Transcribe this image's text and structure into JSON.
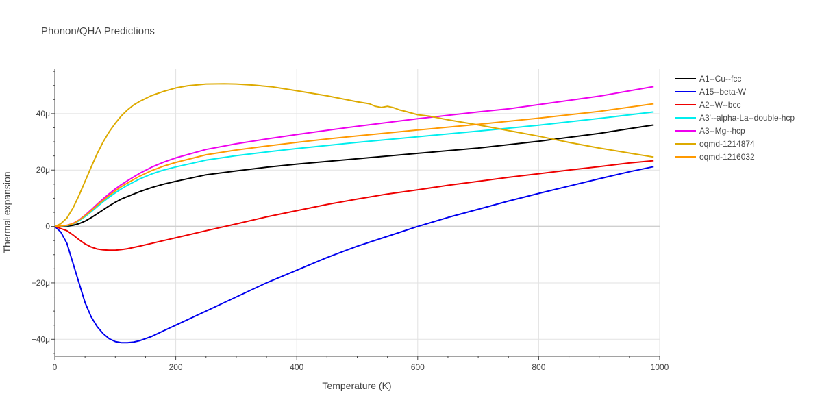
{
  "chart_data": {
    "type": "line",
    "title": "Phonon/QHA Predictions",
    "xlabel": "Temperature (K)",
    "ylabel": "Thermal expansion",
    "xlim": [
      0,
      1000
    ],
    "ylim": [
      -4.6e-05,
      5.6e-05
    ],
    "x_ticks": [
      0,
      200,
      400,
      600,
      800,
      1000
    ],
    "x_tick_labels": [
      "0",
      "200",
      "400",
      "600",
      "800",
      "1000"
    ],
    "y_ticks": [
      -4e-05,
      -2e-05,
      0,
      2e-05,
      4e-05
    ],
    "y_tick_labels": [
      "−40μ",
      "−20μ",
      "0",
      "20μ",
      "40μ"
    ],
    "grid": true,
    "legend_position": "right",
    "series": [
      {
        "name": "A1--Cu--fcc",
        "color": "#000000",
        "x": [
          0,
          20,
          30,
          40,
          50,
          60,
          70,
          80,
          90,
          100,
          110,
          120,
          140,
          160,
          180,
          200,
          250,
          300,
          350,
          400,
          500,
          600,
          700,
          800,
          900,
          990
        ],
        "y": [
          0,
          1e-07,
          4e-07,
          1e-06,
          1.9e-06,
          3.1e-06,
          4.5e-06,
          5.9e-06,
          7.3e-06,
          8.6e-06,
          9.7e-06,
          1.06e-05,
          1.23e-05,
          1.38e-05,
          1.5e-05,
          1.6e-05,
          1.83e-05,
          1.97e-05,
          2.1e-05,
          2.21e-05,
          2.4e-05,
          2.59e-05,
          2.78e-05,
          3.02e-05,
          3.3e-05,
          3.6e-05
        ]
      },
      {
        "name": "A15--beta-W",
        "color": "#0000ee",
        "x": [
          0,
          10,
          20,
          30,
          40,
          50,
          60,
          70,
          80,
          90,
          100,
          110,
          120,
          130,
          140,
          160,
          180,
          200,
          250,
          300,
          350,
          400,
          450,
          500,
          550,
          600,
          650,
          700,
          750,
          800,
          850,
          900,
          950,
          990
        ],
        "y": [
          0,
          -2e-06,
          -6e-06,
          -1.3e-05,
          -2e-05,
          -2.7e-05,
          -3.2e-05,
          -3.55e-05,
          -3.8e-05,
          -3.98e-05,
          -4.08e-05,
          -4.12e-05,
          -4.12e-05,
          -4.1e-05,
          -4.05e-05,
          -3.9e-05,
          -3.7e-05,
          -3.5e-05,
          -3e-05,
          -2.5e-05,
          -2e-05,
          -1.55e-05,
          -1.1e-05,
          -7e-06,
          -3.5e-06,
          0,
          3.2e-06,
          6.1e-06,
          9e-06,
          1.17e-05,
          1.43e-05,
          1.69e-05,
          1.94e-05,
          2.12e-05
        ]
      },
      {
        "name": "A2--W--bcc",
        "color": "#ee0000",
        "x": [
          0,
          20,
          30,
          40,
          50,
          60,
          70,
          80,
          90,
          100,
          110,
          120,
          140,
          160,
          180,
          200,
          250,
          300,
          350,
          400,
          450,
          500,
          550,
          600,
          650,
          700,
          750,
          800,
          850,
          900,
          950,
          990
        ],
        "y": [
          0,
          -1.5e-06,
          -3e-06,
          -4.7e-06,
          -6.2e-06,
          -7.3e-06,
          -8e-06,
          -8.3e-06,
          -8.4e-06,
          -8.4e-06,
          -8.2e-06,
          -7.9e-06,
          -7e-06,
          -6e-06,
          -5e-06,
          -4e-06,
          -1.5e-06,
          9e-07,
          3.4e-06,
          5.6e-06,
          7.8e-06,
          9.7e-06,
          1.15e-05,
          1.3e-05,
          1.46e-05,
          1.6e-05,
          1.74e-05,
          1.87e-05,
          2e-05,
          2.12e-05,
          2.25e-05,
          2.33e-05
        ]
      },
      {
        "name": "A3'--alpha-La--double-hcp",
        "color": "#00eeee",
        "x": [
          0,
          20,
          30,
          40,
          50,
          60,
          70,
          80,
          90,
          100,
          110,
          120,
          140,
          160,
          180,
          200,
          250,
          300,
          350,
          400,
          450,
          500,
          600,
          700,
          800,
          900,
          990
        ],
        "y": [
          0,
          3e-07,
          9e-07,
          2e-06,
          3.5e-06,
          5.2e-06,
          7e-06,
          8.8e-06,
          1.04e-05,
          1.19e-05,
          1.33e-05,
          1.46e-05,
          1.68e-05,
          1.86e-05,
          2e-05,
          2.11e-05,
          2.35e-05,
          2.51e-05,
          2.64e-05,
          2.76e-05,
          2.87e-05,
          2.98e-05,
          3.18e-05,
          3.38e-05,
          3.59e-05,
          3.83e-05,
          4.06e-05
        ]
      },
      {
        "name": "A3--Mg--hcp",
        "color": "#ee00ee",
        "x": [
          0,
          20,
          30,
          40,
          50,
          60,
          70,
          80,
          90,
          100,
          110,
          120,
          140,
          160,
          180,
          200,
          250,
          300,
          350,
          400,
          450,
          500,
          600,
          700,
          750,
          800,
          900,
          990
        ],
        "y": [
          0,
          4e-07,
          1.1e-06,
          2.3e-06,
          4e-06,
          5.9e-06,
          7.9e-06,
          9.8e-06,
          1.16e-05,
          1.33e-05,
          1.48e-05,
          1.62e-05,
          1.88e-05,
          2.1e-05,
          2.28e-05,
          2.43e-05,
          2.73e-05,
          2.93e-05,
          3.1e-05,
          3.26e-05,
          3.41e-05,
          3.55e-05,
          3.82e-05,
          4.06e-05,
          4.17e-05,
          4.32e-05,
          4.62e-05,
          4.96e-05
        ]
      },
      {
        "name": "oqmd-1214874",
        "color": "#ddaa00",
        "x": [
          0,
          10,
          20,
          30,
          40,
          50,
          60,
          70,
          80,
          90,
          100,
          110,
          120,
          130,
          140,
          160,
          180,
          200,
          220,
          250,
          280,
          300,
          330,
          360,
          400,
          450,
          500,
          520,
          530,
          540,
          550,
          560,
          570,
          580,
          600,
          620,
          650,
          700,
          750,
          800,
          850,
          900,
          950,
          990
        ],
        "y": [
          0,
          1e-06,
          3e-06,
          6.5e-06,
          1.1e-05,
          1.6e-05,
          2.1e-05,
          2.58e-05,
          3e-05,
          3.36e-05,
          3.66e-05,
          3.92e-05,
          4.13e-05,
          4.3e-05,
          4.43e-05,
          4.64e-05,
          4.79e-05,
          4.91e-05,
          4.99e-05,
          5.05e-05,
          5.06e-05,
          5.05e-05,
          5.01e-05,
          4.95e-05,
          4.81e-05,
          4.63e-05,
          4.42e-05,
          4.35e-05,
          4.26e-05,
          4.22e-05,
          4.26e-05,
          4.21e-05,
          4.13e-05,
          4.08e-05,
          3.96e-05,
          3.91e-05,
          3.78e-05,
          3.6e-05,
          3.4e-05,
          3.2e-05,
          2.98e-05,
          2.78e-05,
          2.6e-05,
          2.46e-05
        ]
      },
      {
        "name": "oqmd-1216032",
        "color": "#ff9900",
        "x": [
          0,
          20,
          30,
          40,
          50,
          60,
          70,
          80,
          90,
          100,
          110,
          120,
          140,
          160,
          180,
          200,
          250,
          300,
          350,
          400,
          450,
          500,
          600,
          700,
          800,
          900,
          990
        ],
        "y": [
          0,
          4e-07,
          1e-06,
          2.2e-06,
          3.8e-06,
          5.6e-06,
          7.5e-06,
          9.3e-06,
          1.1e-05,
          1.26e-05,
          1.41e-05,
          1.54e-05,
          1.78e-05,
          1.98e-05,
          2.14e-05,
          2.27e-05,
          2.54e-05,
          2.71e-05,
          2.85e-05,
          2.98e-05,
          3.1e-05,
          3.21e-05,
          3.42e-05,
          3.62e-05,
          3.84e-05,
          4.08e-05,
          4.35e-05
        ]
      }
    ]
  }
}
